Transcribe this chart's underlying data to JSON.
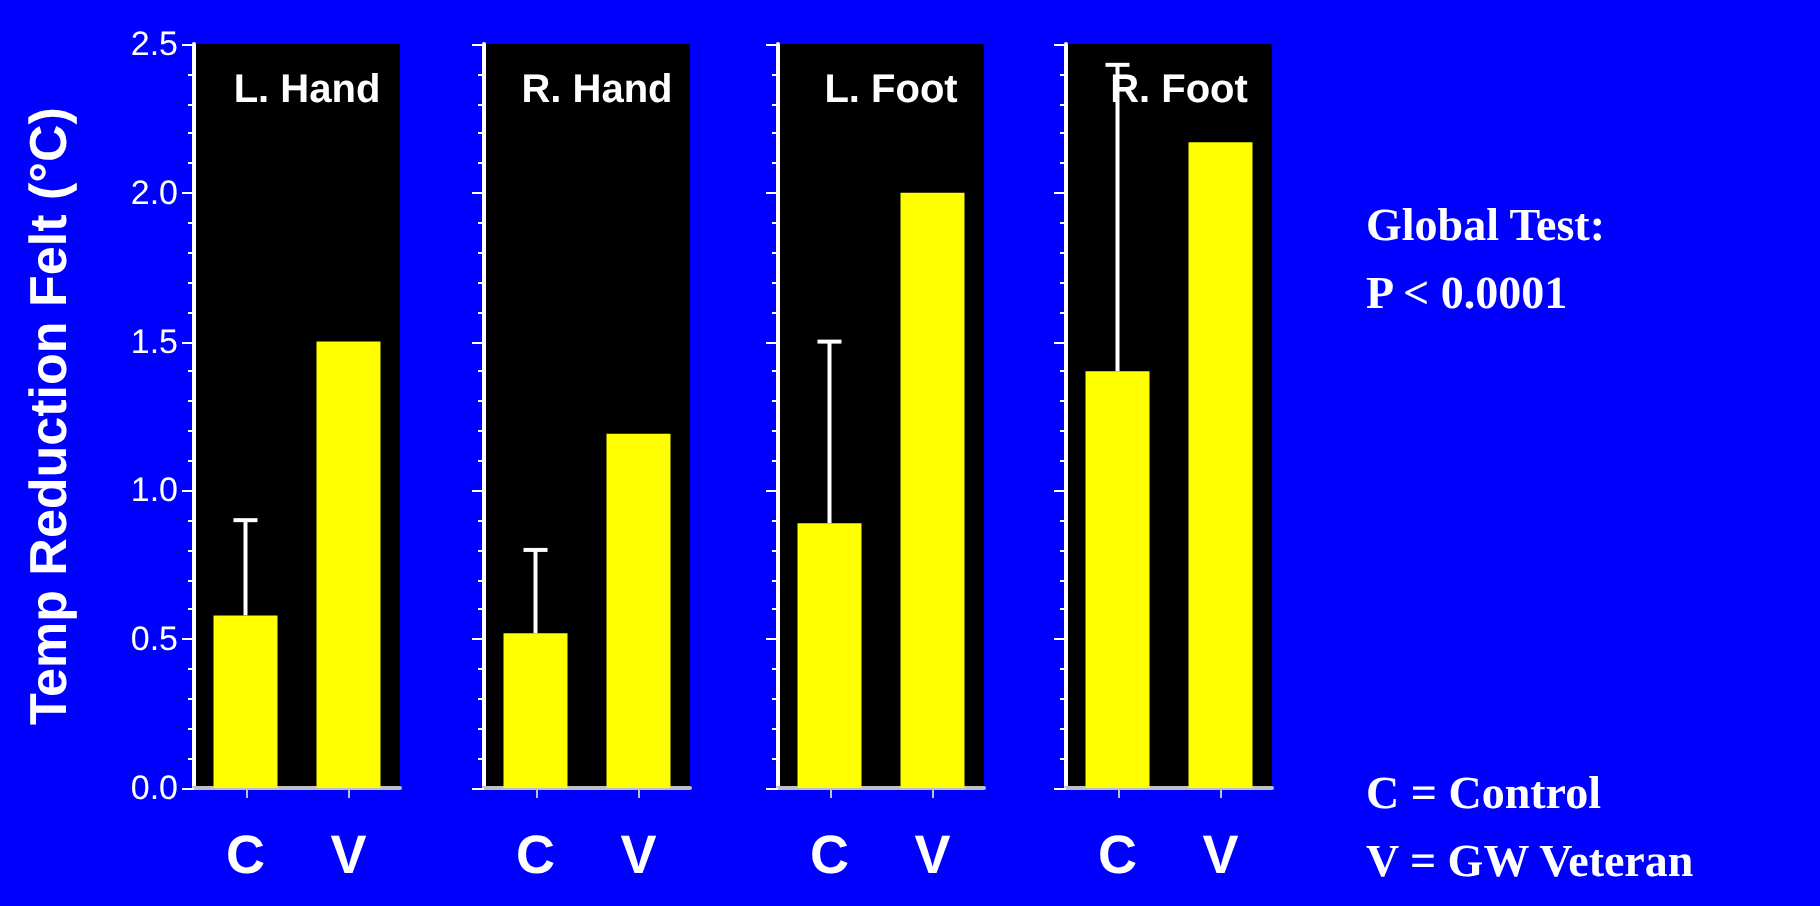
{
  "chart_data": [
    {
      "type": "bar",
      "title": "L. Hand",
      "ylabel": "Temp Reduction Felt (°C)",
      "categories": [
        "C",
        "V"
      ],
      "values": [
        0.58,
        1.5
      ],
      "errors": [
        [
          0.58,
          0.9
        ],
        null
      ],
      "color": "#ffff00",
      "ylim": [
        0,
        2.5
      ],
      "yticks": [
        {
          "value": 0,
          "label": "0.0"
        },
        {
          "value": 0.5,
          "label": "0.5"
        },
        {
          "value": 1,
          "label": "1.0"
        },
        {
          "value": 1.5,
          "label": "1.5"
        },
        {
          "value": 2,
          "label": "2.0"
        },
        {
          "value": 2.5,
          "label": "2.5"
        }
      ],
      "grid": false
    },
    {
      "type": "bar",
      "title": "R. Hand",
      "categories": [
        "C",
        "V"
      ],
      "values": [
        0.52,
        1.19
      ],
      "errors": [
        [
          0.52,
          0.8
        ],
        null
      ],
      "color": "#ffff00",
      "ylim": [
        0,
        2.5
      ],
      "yticks": [
        {
          "value": 0,
          "label": null
        },
        {
          "value": 0.5,
          "label": null
        },
        {
          "value": 1,
          "label": null
        },
        {
          "value": 1.5,
          "label": null
        },
        {
          "value": 2,
          "label": null
        },
        {
          "value": 2.5,
          "label": null
        }
      ],
      "tick_labels": "x",
      "grid": false
    },
    {
      "type": "bar",
      "title": "L. Foot",
      "categories": [
        "C",
        "V"
      ],
      "values": [
        0.89,
        2.0
      ],
      "errors": [
        [
          0.89,
          1.5
        ],
        null
      ],
      "color": "#ffff00",
      "ylim": [
        0,
        2.5
      ],
      "yticks": [
        {
          "value": 0,
          "label": null
        },
        {
          "value": 0.5,
          "label": null
        },
        {
          "value": 1,
          "label": null
        },
        {
          "value": 1.5,
          "label": null
        },
        {
          "value": 2,
          "label": null
        },
        {
          "value": 2.5,
          "label": null
        }
      ],
      "tick_labels": "x",
      "grid": false
    },
    {
      "type": "bar",
      "title": "R. Foot",
      "categories": [
        "C",
        "V"
      ],
      "values": [
        1.4,
        2.17
      ],
      "errors": [
        [
          1.4,
          2.43
        ],
        null
      ],
      "color": "#ffff00",
      "ylim": [
        0,
        2.5
      ],
      "yticks": [
        {
          "value": 0,
          "label": null
        },
        {
          "value": 0.5,
          "label": null
        },
        {
          "value": 1,
          "label": null
        },
        {
          "value": 1.5,
          "label": null
        },
        {
          "value": 2,
          "label": null
        },
        {
          "value": 2.5,
          "label": null
        }
      ],
      "tick_labels": "x",
      "grid": false
    },
    {
      "type": "other",
      "annotations": [
        "Global Test:",
        "P < 0.0001",
        "C = Control",
        "V = GW Veteran"
      ]
    }
  ]
}
